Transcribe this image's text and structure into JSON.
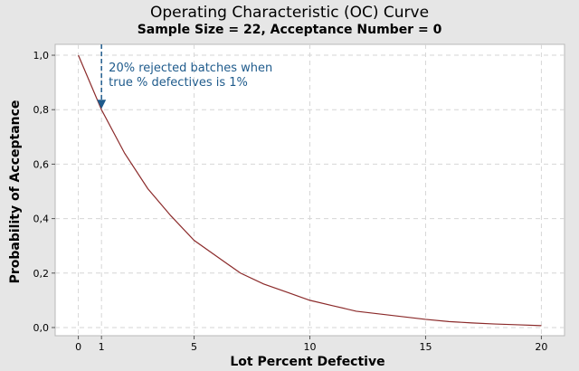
{
  "chart_data": {
    "type": "line",
    "title": "Operating Characteristic (OC) Curve",
    "subtitle": "Sample Size = 22, Acceptance Number = 0",
    "xlabel": "Lot Percent Defective",
    "ylabel": "Probability of Acceptance",
    "xlim": [
      -1,
      21
    ],
    "ylim": [
      -0.03,
      1.04
    ],
    "x_ticks": [
      0,
      1,
      5,
      10,
      15,
      20
    ],
    "x_tick_labels": [
      "0",
      "1",
      "5",
      "10",
      "15",
      "20"
    ],
    "y_ticks": [
      0,
      0.2,
      0.4,
      0.6,
      0.8,
      1.0
    ],
    "y_tick_labels": [
      "0,0",
      "0,2",
      "0,4",
      "0,6",
      "0,8",
      "1,0"
    ],
    "grid": true,
    "series": [
      {
        "x": [
          0,
          1,
          2,
          3,
          4,
          5,
          6,
          7,
          8,
          9,
          10,
          11,
          12,
          13,
          14,
          15,
          16,
          17,
          18,
          19,
          20
        ],
        "y": [
          1.0,
          0.8,
          0.64,
          0.51,
          0.41,
          0.32,
          0.26,
          0.2,
          0.16,
          0.13,
          0.1,
          0.08,
          0.06,
          0.05,
          0.04,
          0.03,
          0.022,
          0.017,
          0.013,
          0.01,
          0.007
        ]
      }
    ],
    "annotation": {
      "text_lines": [
        "20% rejected batches when",
        "true % defectives is 1%"
      ],
      "x": 1,
      "y": 0.8
    },
    "colors": {
      "line": "#8b2a2a",
      "annotation": "#1f5b8c",
      "grid": "#d6d6d6",
      "plot_bg": "#ffffff",
      "page_bg": "#e6e6e6"
    }
  }
}
